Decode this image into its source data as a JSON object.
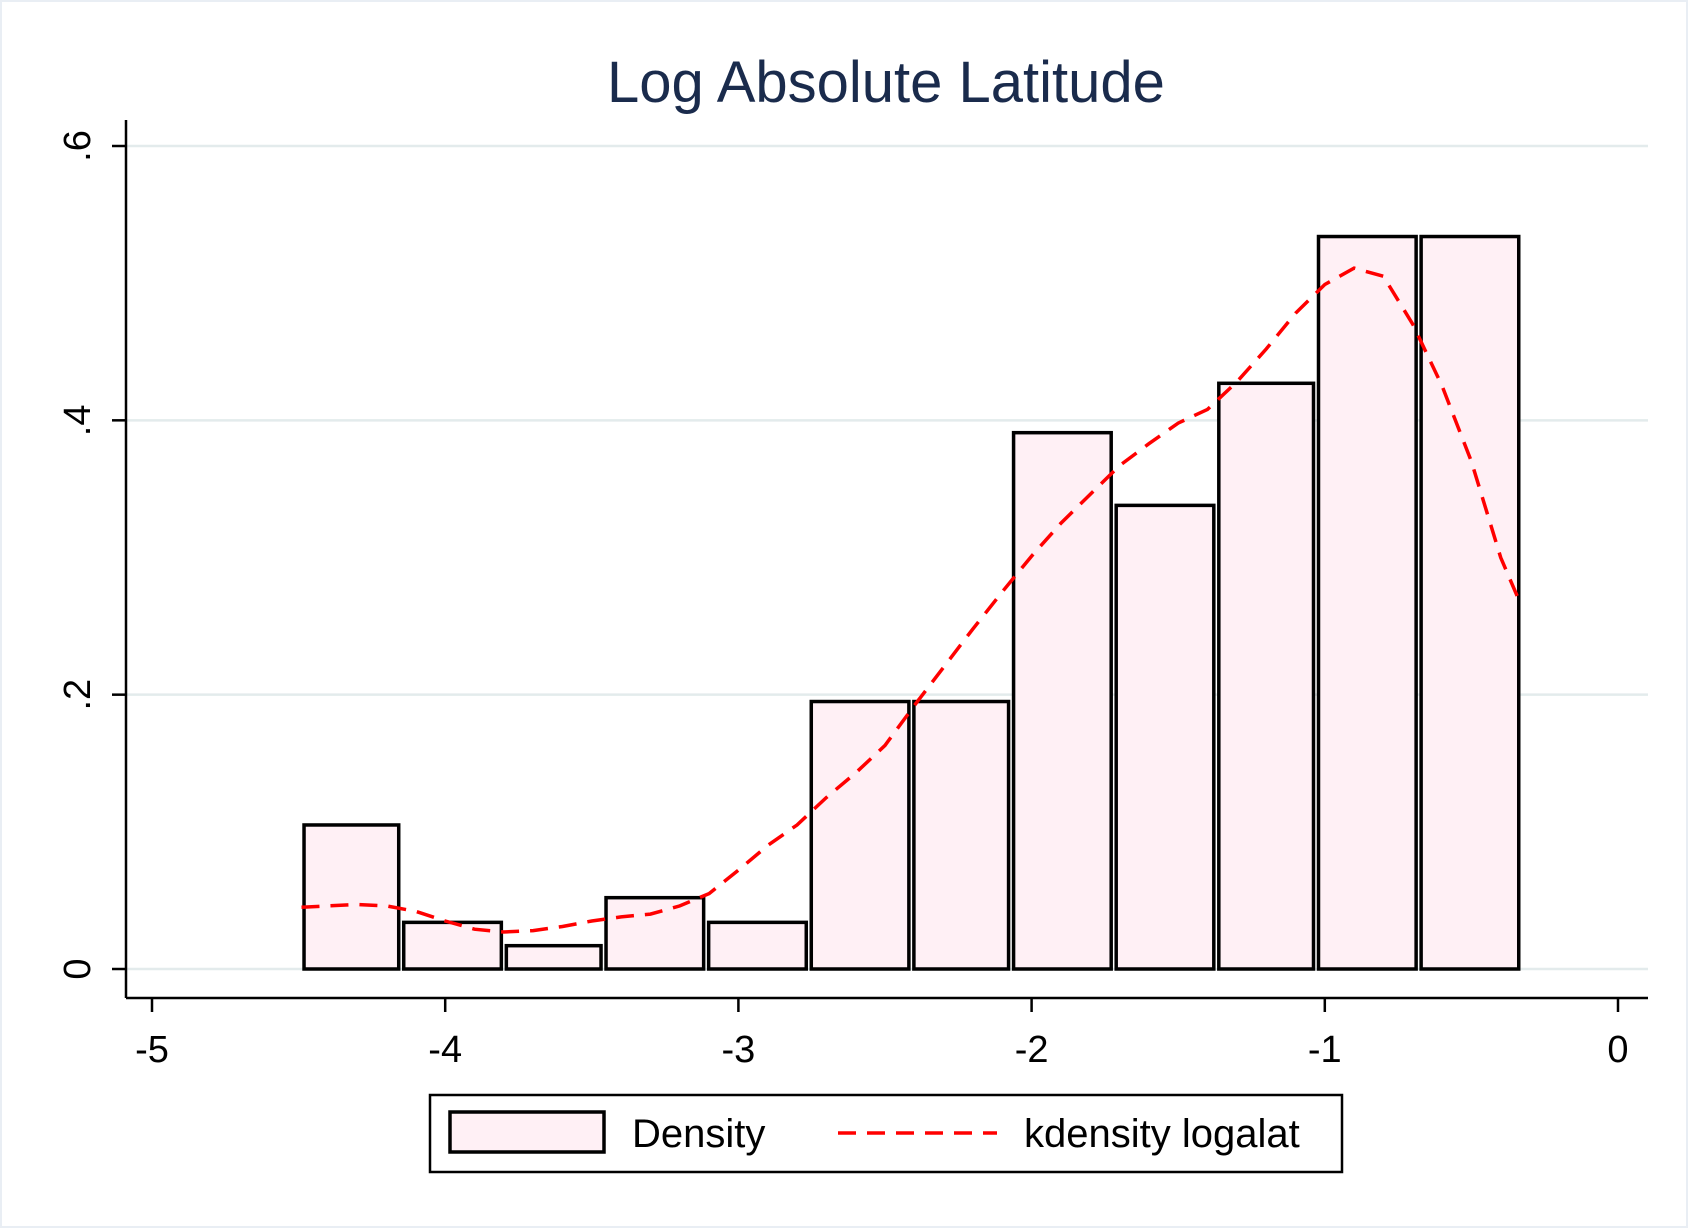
{
  "chart_data": {
    "type": "bar",
    "title": "Log Absolute Latitude",
    "xlabel": "",
    "ylabel": "",
    "xlim": [
      -5,
      0
    ],
    "ylim": [
      0,
      0.6
    ],
    "x_ticks": [
      -5,
      -4,
      -3,
      -2,
      -1,
      0
    ],
    "x_tick_labels": [
      "-5",
      "-4",
      "-3",
      "-2",
      "-1",
      "0"
    ],
    "y_ticks": [
      0,
      0.2,
      0.4,
      0.6
    ],
    "y_tick_labels": [
      "0",
      ".2",
      ".4",
      ".6"
    ],
    "grid": "horizontal",
    "legend_position": "bottom",
    "series": [
      {
        "name": "Density",
        "kind": "histogram",
        "fill": "#fff0f5",
        "stroke": "#000000",
        "bins": [
          {
            "x0": -4.49,
            "x1": -4.15,
            "value": 0.105
          },
          {
            "x0": -4.15,
            "x1": -3.8,
            "value": 0.034
          },
          {
            "x0": -3.8,
            "x1": -3.46,
            "value": 0.017
          },
          {
            "x0": -3.46,
            "x1": -3.11,
            "value": 0.052
          },
          {
            "x0": -3.11,
            "x1": -2.76,
            "value": 0.034
          },
          {
            "x0": -2.76,
            "x1": -2.41,
            "value": 0.195
          },
          {
            "x0": -2.41,
            "x1": -2.07,
            "value": 0.195
          },
          {
            "x0": -2.07,
            "x1": -1.72,
            "value": 0.391
          },
          {
            "x0": -1.72,
            "x1": -1.37,
            "value": 0.338
          },
          {
            "x0": -1.37,
            "x1": -1.03,
            "value": 0.427
          },
          {
            "x0": -1.03,
            "x1": -0.68,
            "value": 0.534
          },
          {
            "x0": -0.68,
            "x1": -0.33,
            "value": 0.534
          }
        ]
      },
      {
        "name": "kdensity logalat",
        "kind": "line",
        "color": "#ff0000",
        "dash": "dashed",
        "x": [
          -4.49,
          -4.4,
          -4.3,
          -4.2,
          -4.1,
          -4.0,
          -3.9,
          -3.8,
          -3.7,
          -3.6,
          -3.5,
          -3.4,
          -3.3,
          -3.2,
          -3.1,
          -3.0,
          -2.9,
          -2.8,
          -2.7,
          -2.6,
          -2.5,
          -2.4,
          -2.3,
          -2.2,
          -2.1,
          -2.0,
          -1.9,
          -1.8,
          -1.7,
          -1.6,
          -1.5,
          -1.4,
          -1.3,
          -1.2,
          -1.1,
          -1.0,
          -0.9,
          -0.8,
          -0.7,
          -0.6,
          -0.5,
          -0.4,
          -0.33
        ],
        "y": [
          0.045,
          0.046,
          0.047,
          0.046,
          0.042,
          0.035,
          0.029,
          0.027,
          0.028,
          0.031,
          0.035,
          0.038,
          0.04,
          0.046,
          0.055,
          0.072,
          0.09,
          0.105,
          0.125,
          0.143,
          0.163,
          0.192,
          0.22,
          0.248,
          0.275,
          0.301,
          0.325,
          0.346,
          0.367,
          0.383,
          0.398,
          0.408,
          0.428,
          0.452,
          0.478,
          0.499,
          0.511,
          0.505,
          0.47,
          0.425,
          0.37,
          0.3,
          0.265
        ]
      }
    ]
  }
}
